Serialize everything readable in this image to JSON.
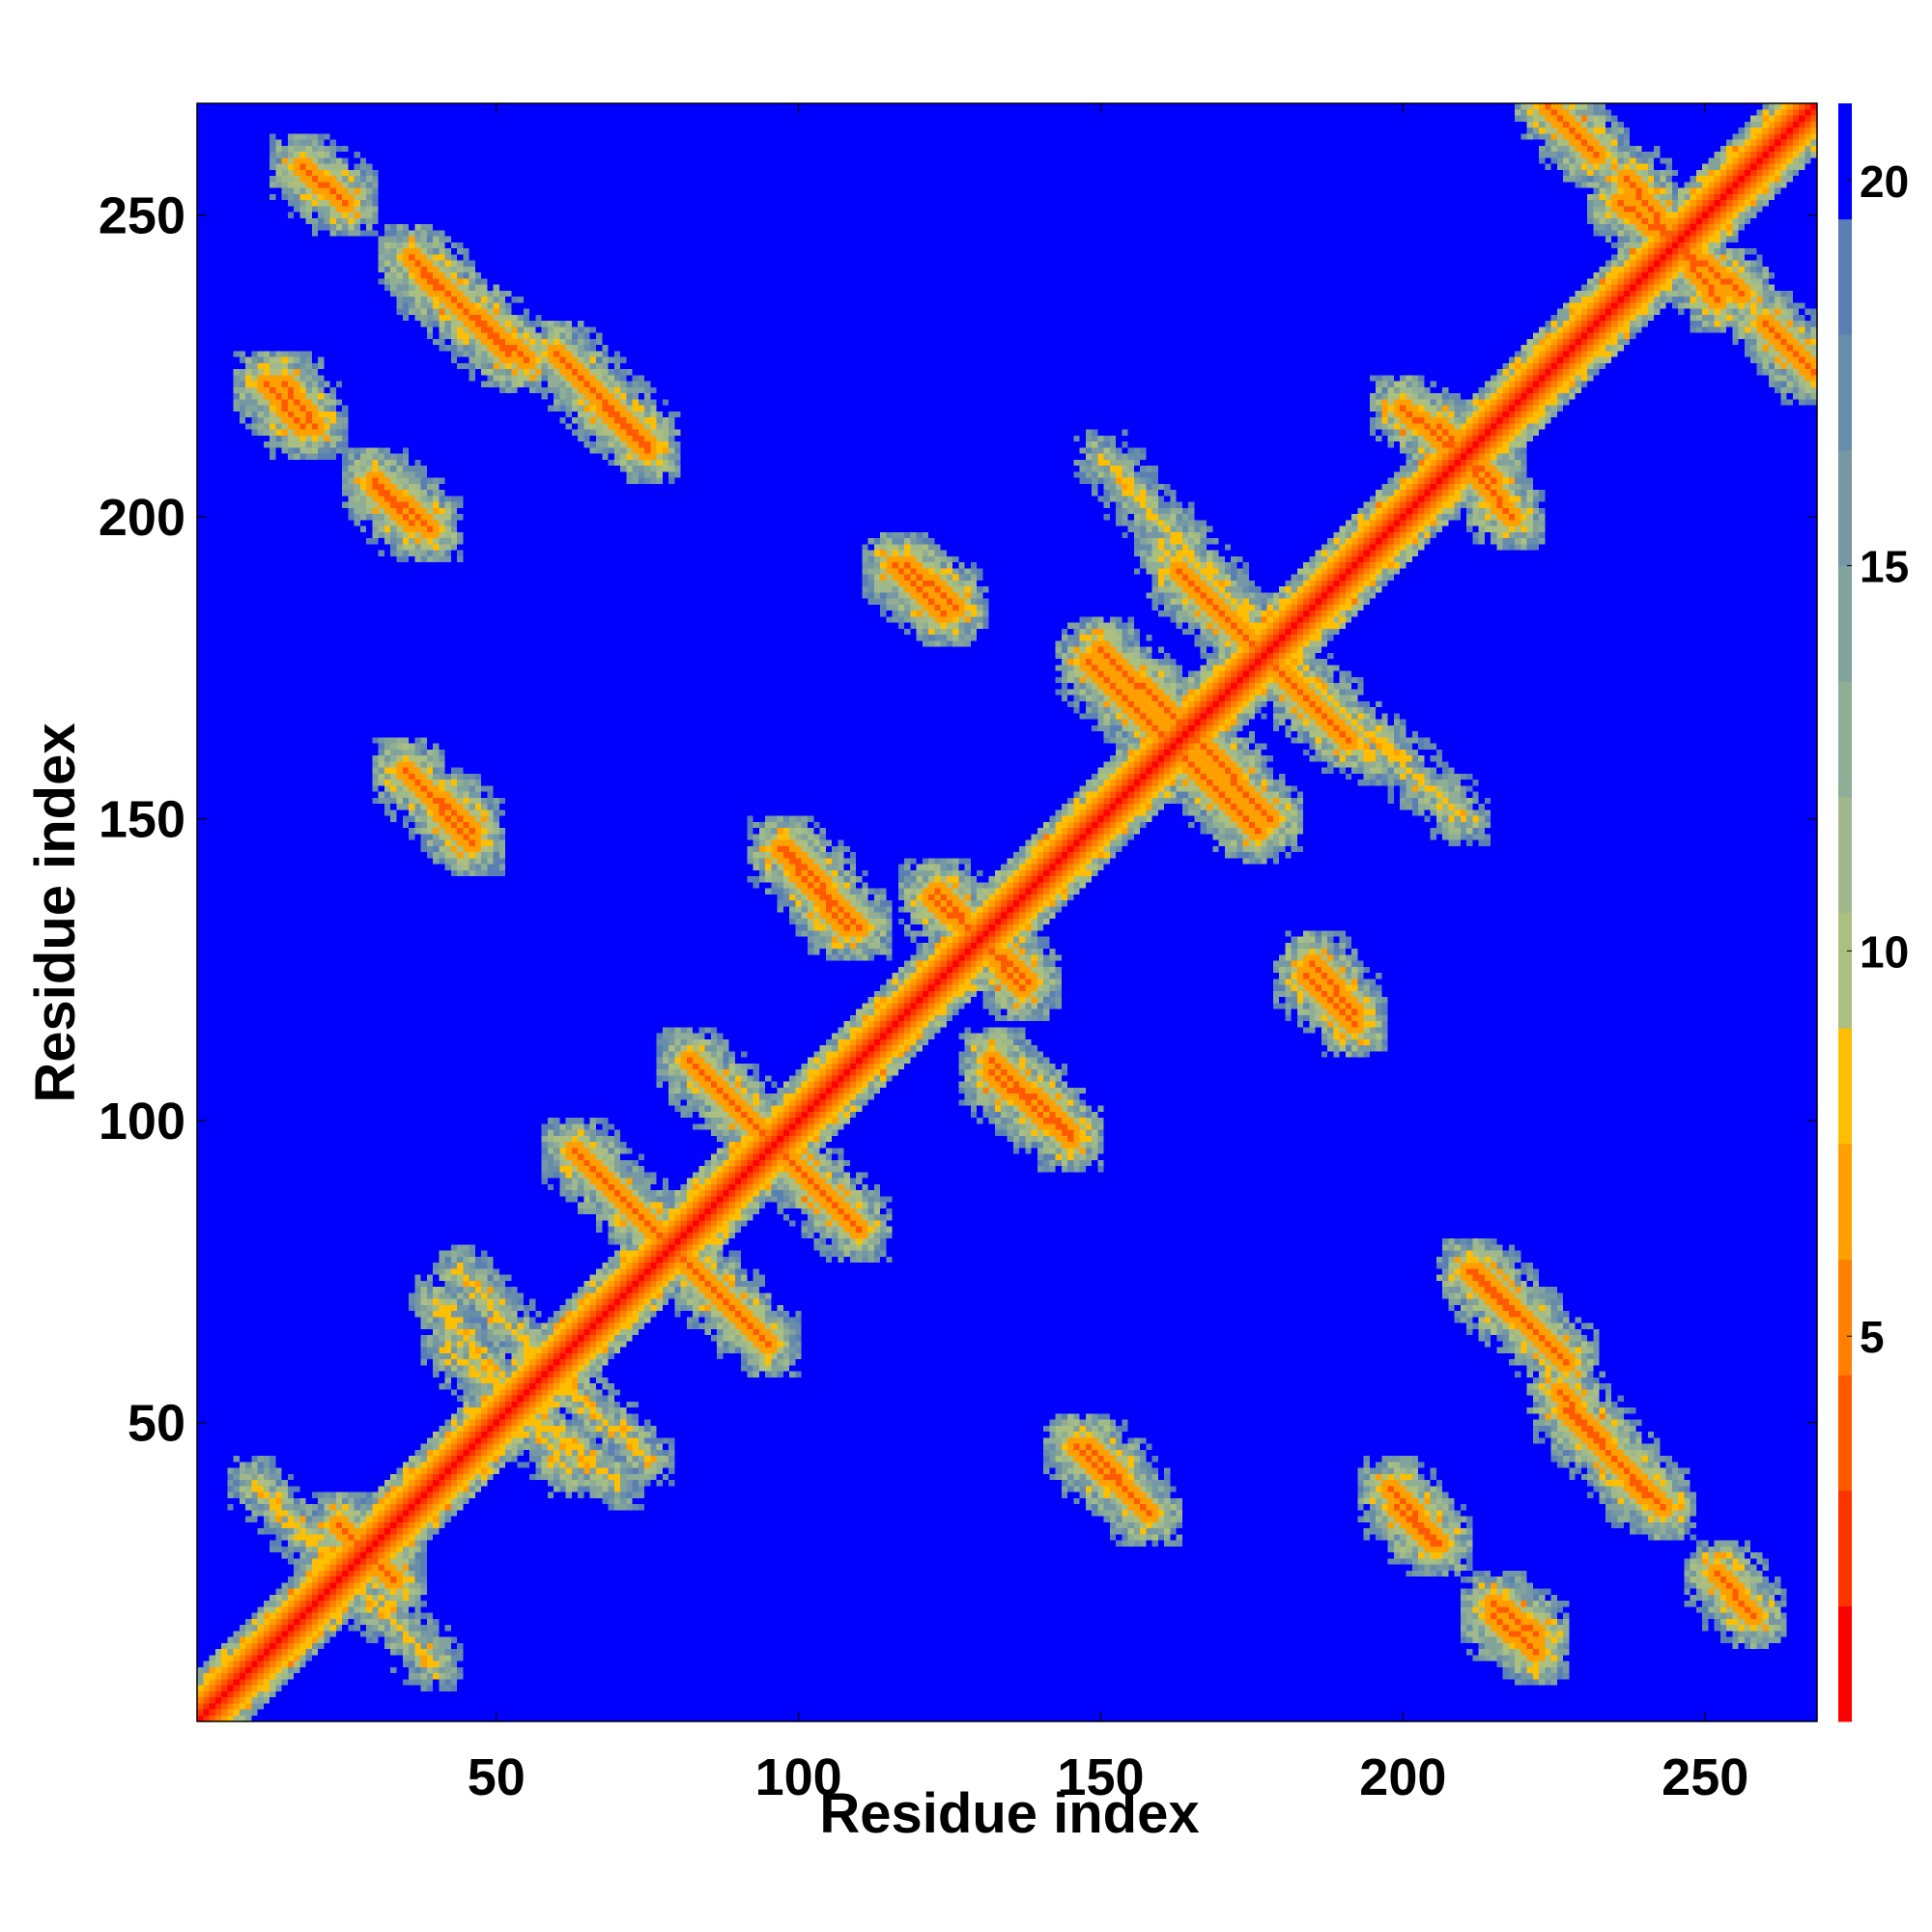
{
  "chart_data": {
    "type": "heatmap",
    "title": "",
    "xlabel": "Residue index",
    "ylabel": "Residue index",
    "xlim": [
      1,
      268
    ],
    "ylim": [
      1,
      268
    ],
    "x_ticks": [
      50,
      100,
      150,
      200,
      250
    ],
    "y_ticks": [
      50,
      100,
      150,
      200,
      250
    ],
    "colorbar": {
      "range": [
        0,
        21
      ],
      "ticks": [
        5,
        10,
        15,
        20
      ],
      "colors": [
        "#ff0000",
        "#ff3300",
        "#ff5a00",
        "#ff7f00",
        "#ffa000",
        "#ffbf00",
        "#aabf80",
        "#9fb98c",
        "#8fae95",
        "#82a39c",
        "#7598a4",
        "#678dab",
        "#5a80b3",
        "#0000ff"
      ]
    },
    "value_meaning": "pairwise residue distance (contact map)",
    "diagonal": {
      "from": 1,
      "to": 268,
      "value": 0
    },
    "antiparallel_contacts": [
      {
        "x": [
          63,
          95
        ],
        "y": [
          95,
          63
        ]
      },
      {
        "x": [
          82,
          110
        ],
        "y": [
          110,
          82
        ]
      },
      {
        "x": [
          36,
          52
        ],
        "y": [
          243,
          227
        ]
      },
      {
        "x": [
          66,
          75
        ],
        "y": [
          221,
          212
        ]
      },
      {
        "x": [
          36,
          46
        ],
        "y": [
          157,
          148
        ]
      },
      {
        "x": [
          30,
          36
        ],
        "y": [
          205,
          199
        ]
      },
      {
        "x": [
          148,
          160
        ],
        "y": [
          176,
          164
        ]
      },
      {
        "x": [
          165,
          178
        ],
        "y": [
          164,
          150
        ]
      },
      {
        "x": [
          163,
          186
        ],
        "y": [
          191,
          168
        ]
      },
      {
        "x": [
          122,
          138
        ],
        "y": [
          137,
          123
        ]
      },
      {
        "x": [
          97,
          108
        ],
        "y": [
          145,
          132
        ]
      },
      {
        "x": [
          132,
          145
        ],
        "y": [
          110,
          98
        ]
      },
      {
        "x": [
          146,
          158
        ],
        "y": [
          46,
          35
        ]
      },
      {
        "x": [
          226,
          240
        ],
        "y": [
          55,
          38
        ]
      },
      {
        "x": [
          211,
          227
        ],
        "y": [
          75,
          60
        ]
      },
      {
        "x": [
          198,
          206
        ],
        "y": [
          39,
          30
        ]
      },
      {
        "x": [
          215,
          222
        ],
        "y": [
          18,
          12
        ]
      },
      {
        "x": [
          236,
          256
        ],
        "y": [
          252,
          237
        ]
      },
      {
        "x": [
          206,
          218
        ],
        "y": [
          215,
          200
        ]
      },
      {
        "x": [
          116,
          124
        ],
        "y": [
          192,
          184
        ]
      },
      {
        "x": [
          185,
          192
        ],
        "y": [
          126,
          118
        ]
      },
      {
        "x": [
          224,
          232
        ],
        "y": [
          268,
          260
        ]
      },
      {
        "x": [
          15,
          20
        ],
        "y": [
          222,
          215
        ]
      },
      {
        "x": [
          18,
          25
        ],
        "y": [
          258,
          252
        ]
      },
      {
        "x": [
          24,
          33
        ],
        "y": [
          33,
          24
        ]
      }
    ],
    "near_contacts": [
      {
        "x": [
          44,
          62
        ],
        "y": [
          75,
          55
        ]
      },
      {
        "x": [
          42,
          70
        ],
        "y": [
          62,
          40
        ]
      },
      {
        "x": [
          10,
          40
        ],
        "y": [
          40,
          10
        ]
      },
      {
        "x": [
          160,
          210
        ],
        "y": [
          195,
          150
        ]
      }
    ]
  }
}
